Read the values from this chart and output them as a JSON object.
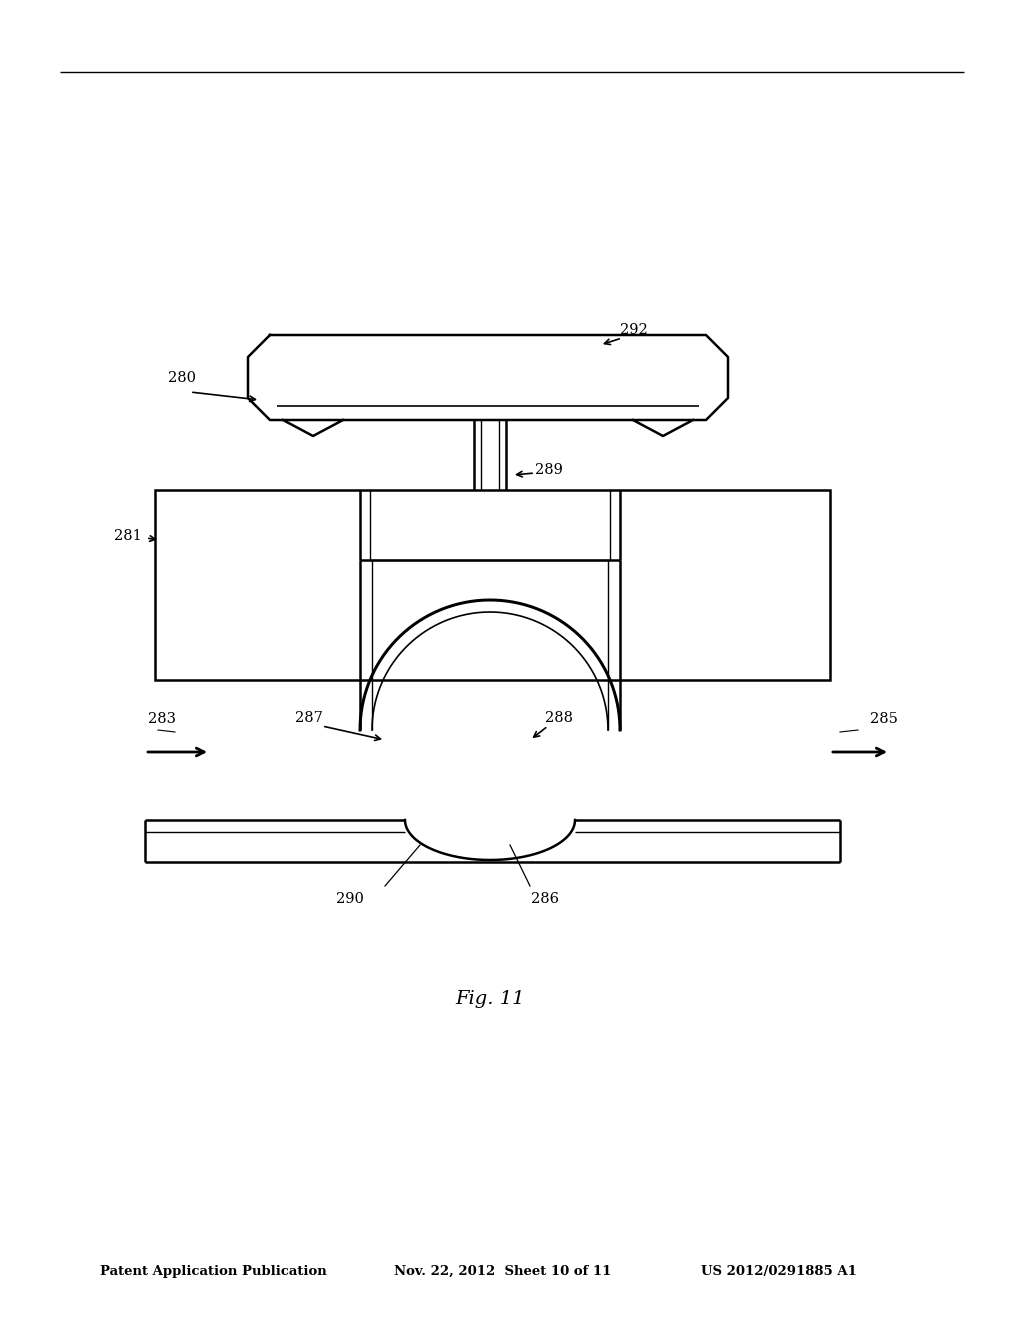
{
  "title_left": "Patent Application Publication",
  "title_mid": "Nov. 22, 2012  Sheet 10 of 11",
  "title_right": "US 2012/0291885 A1",
  "fig_label": "Fig. 11",
  "background": "#ffffff",
  "line_color": "#000000"
}
